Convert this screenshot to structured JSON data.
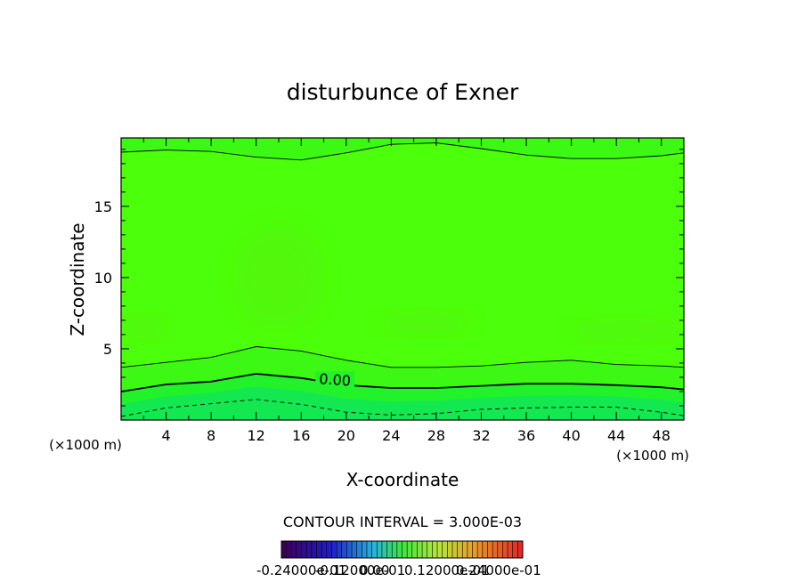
{
  "chart_data": {
    "type": "contour",
    "title": "disturbunce of Exner",
    "xlabel": "X-coordinate",
    "ylabel": "Z-coordinate",
    "x_unit": "(×1000 m)",
    "y_unit": "(×1000 m)",
    "xlim": [
      0,
      50
    ],
    "ylim": [
      0,
      19.8
    ],
    "x_ticks": [
      4,
      8,
      12,
      16,
      20,
      24,
      28,
      32,
      36,
      40,
      44,
      48
    ],
    "y_ticks": [
      5,
      10,
      15
    ],
    "contour_interval_text": "CONTOUR INTERVAL = 3.000E-03",
    "contour_label": "0.00",
    "colorbar_labels": [
      "-0.24000e-01",
      "-0.12000e-01",
      "0.00",
      "0.12000e-01",
      "0.24000e-01"
    ],
    "colors": {
      "level_pos1": "#3cf814",
      "level_zero": "#4cff0a",
      "level_neg1": "#22f22a",
      "level_neg2": "#14e850",
      "level_neg3": "#10e070",
      "highlight_pos": "#58f20e"
    },
    "contours": [
      {
        "name": "upper",
        "style": "solid",
        "x": [
          0,
          4,
          8,
          12,
          16,
          20,
          24,
          28,
          32,
          36,
          40,
          44,
          48,
          50
        ],
        "z": [
          18.8,
          18.95,
          18.85,
          18.45,
          18.25,
          18.75,
          19.35,
          19.45,
          19.05,
          18.6,
          18.35,
          18.35,
          18.55,
          18.75
        ]
      },
      {
        "name": "lower-positive",
        "style": "solid",
        "x": [
          0,
          4,
          8,
          12,
          16,
          20,
          24,
          28,
          32,
          36,
          40,
          44,
          48,
          50
        ],
        "z": [
          3.7,
          4.05,
          4.4,
          5.15,
          4.85,
          4.2,
          3.7,
          3.7,
          3.8,
          4.05,
          4.2,
          3.9,
          3.8,
          3.7
        ]
      },
      {
        "name": "zero",
        "style": "bold",
        "x": [
          0,
          4,
          8,
          12,
          16,
          20,
          24,
          28,
          32,
          36,
          40,
          44,
          48,
          50
        ],
        "z": [
          2.0,
          2.5,
          2.7,
          3.25,
          2.95,
          2.45,
          2.25,
          2.25,
          2.4,
          2.55,
          2.55,
          2.45,
          2.3,
          2.15
        ]
      },
      {
        "name": "negative",
        "style": "dashed",
        "x": [
          0,
          4,
          8,
          12,
          16,
          20,
          24,
          28,
          32,
          36,
          40,
          44,
          48,
          50
        ],
        "z": [
          0.25,
          0.85,
          1.15,
          1.45,
          1.1,
          0.55,
          0.35,
          0.45,
          0.75,
          0.85,
          0.9,
          0.9,
          0.55,
          0.3
        ]
      }
    ]
  }
}
